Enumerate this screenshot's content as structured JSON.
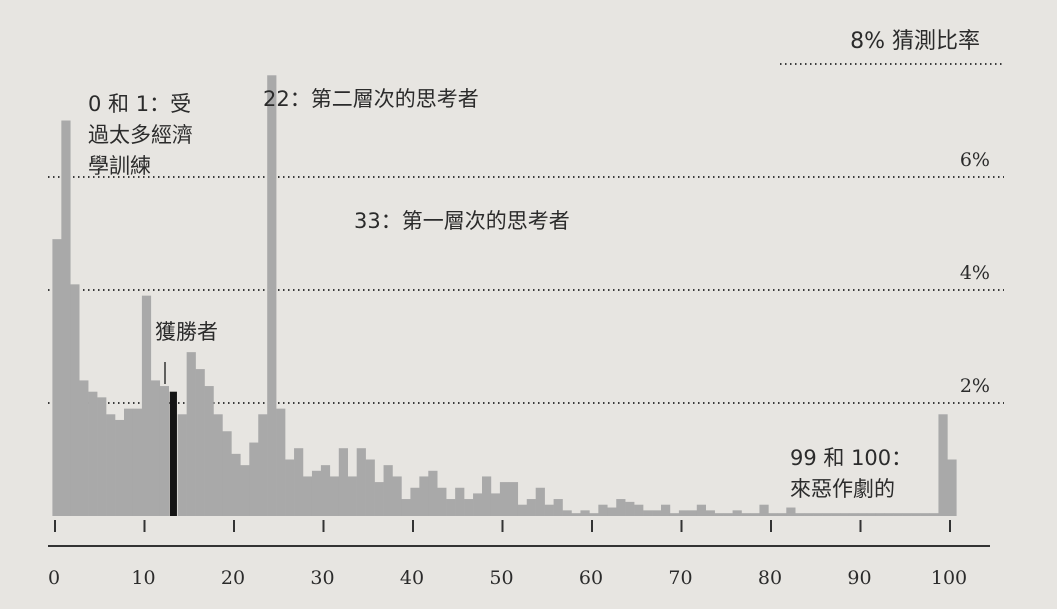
{
  "chart_data": {
    "type": "bar",
    "ylabel": "8% 猜測比率",
    "ylim": [
      0,
      8
    ],
    "xlim": [
      0,
      100
    ],
    "grid": true,
    "gridlines": [
      2,
      4,
      6,
      8
    ],
    "gridline_labels": [
      "2%",
      "4%",
      "6%"
    ],
    "x_ticks": [
      0,
      10,
      20,
      30,
      40,
      50,
      60,
      70,
      80,
      90,
      100
    ],
    "x_tick_labels": [
      "0",
      "10",
      "20",
      "30",
      "40",
      "50",
      "60",
      "70",
      "80",
      "90",
      "100"
    ],
    "highlight_x": 13,
    "x": [
      0,
      1,
      2,
      3,
      4,
      5,
      6,
      7,
      8,
      9,
      10,
      11,
      12,
      13,
      14,
      15,
      16,
      17,
      18,
      19,
      20,
      21,
      22,
      23,
      24,
      25,
      26,
      27,
      28,
      29,
      30,
      31,
      32,
      33,
      34,
      35,
      36,
      37,
      38,
      39,
      40,
      41,
      42,
      43,
      44,
      45,
      46,
      47,
      48,
      49,
      50,
      51,
      52,
      53,
      54,
      55,
      56,
      57,
      58,
      59,
      60,
      61,
      62,
      63,
      64,
      65,
      66,
      67,
      68,
      69,
      70,
      71,
      72,
      73,
      74,
      75,
      76,
      77,
      78,
      79,
      80,
      81,
      82,
      83,
      84,
      85,
      86,
      87,
      88,
      89,
      90,
      91,
      92,
      93,
      94,
      95,
      96,
      97,
      98,
      99,
      100
    ],
    "values": [
      4.9,
      7.0,
      4.1,
      2.4,
      2.2,
      2.1,
      1.8,
      1.7,
      1.9,
      1.9,
      3.9,
      2.4,
      2.3,
      2.2,
      1.8,
      2.9,
      2.6,
      2.3,
      1.8,
      1.5,
      1.1,
      0.9,
      1.3,
      1.8,
      7.8,
      1.9,
      1.0,
      1.2,
      0.7,
      0.8,
      0.9,
      0.7,
      1.2,
      0.7,
      1.2,
      1.0,
      0.6,
      0.9,
      0.7,
      0.3,
      0.5,
      0.7,
      0.8,
      0.5,
      0.3,
      0.5,
      0.3,
      0.4,
      0.7,
      0.4,
      0.6,
      0.6,
      0.2,
      0.3,
      0.5,
      0.2,
      0.3,
      0.1,
      0.05,
      0.1,
      0.05,
      0.2,
      0.15,
      0.3,
      0.25,
      0.2,
      0.1,
      0.1,
      0.2,
      0.05,
      0.1,
      0.1,
      0.2,
      0.1,
      0.05,
      0.05,
      0.1,
      0.05,
      0.05,
      0.2,
      0.05,
      0.05,
      0.15,
      0.05,
      0.05,
      0.05,
      0.05,
      0.05,
      0.05,
      0.05,
      0.05,
      0.05,
      0.05,
      0.05,
      0.05,
      0.05,
      0.05,
      0.05,
      0.05,
      1.8,
      1.0
    ],
    "annotations": [
      {
        "id": "zero-one",
        "lines": [
          "0 和 1：受",
          "過太多經濟",
          "學訓練"
        ]
      },
      {
        "id": "twenty-two",
        "lines": [
          "22：第二層次的思考者"
        ]
      },
      {
        "id": "thirty-three",
        "lines": [
          "33：第一層次的思考者"
        ]
      },
      {
        "id": "winner",
        "lines": [
          "獲勝者"
        ]
      },
      {
        "id": "ninety-nine",
        "lines": [
          "99 和 100：",
          "來惡作劇的"
        ]
      }
    ]
  }
}
